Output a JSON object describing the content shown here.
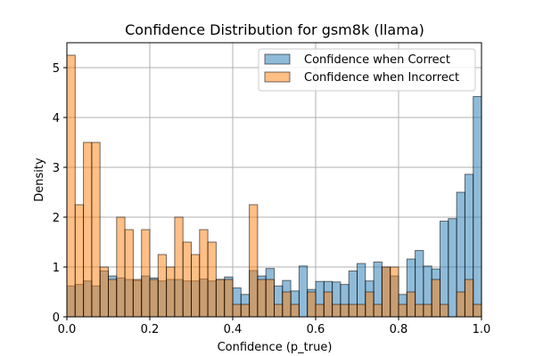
{
  "chart_data": {
    "type": "bar",
    "title": "Confidence Distribution for gsm8k (llama)",
    "xlabel": "Confidence (p_true)",
    "ylabel": "Density",
    "xlim": [
      0,
      1
    ],
    "ylim": [
      0,
      5.5
    ],
    "xticks": [
      0.0,
      0.2,
      0.4,
      0.6,
      0.8,
      1.0
    ],
    "xtick_labels": [
      "0.0",
      "0.2",
      "0.4",
      "0.6",
      "0.8",
      "1.0"
    ],
    "yticks": [
      0,
      1,
      2,
      3,
      4,
      5
    ],
    "ytick_labels": [
      "0",
      "1",
      "2",
      "3",
      "4",
      "5"
    ],
    "grid": true,
    "legend_position": "top-right",
    "bin_width": 0.02,
    "bin_start": 0.0,
    "series": [
      {
        "name": "Confidence when Correct",
        "color": "#1f77b4",
        "values": [
          0.62,
          0.65,
          0.72,
          0.62,
          0.92,
          0.82,
          0.78,
          0.75,
          0.73,
          0.82,
          0.78,
          0.72,
          0.75,
          0.75,
          0.72,
          0.72,
          0.76,
          0.72,
          0.75,
          0.8,
          0.58,
          0.45,
          0.93,
          0.82,
          0.97,
          0.62,
          0.73,
          0.52,
          1.02,
          0.55,
          0.71,
          0.71,
          0.7,
          0.65,
          0.92,
          1.07,
          0.72,
          1.1,
          1.0,
          0.82,
          0.45,
          1.16,
          1.33,
          1.02,
          0.96,
          1.92,
          1.97,
          2.5,
          2.86,
          4.42
        ]
      },
      {
        "name": "Confidence when Incorrect",
        "color": "#ff7f0e",
        "values": [
          5.25,
          2.25,
          3.5,
          3.5,
          1.0,
          0.75,
          2.0,
          1.75,
          0.75,
          1.75,
          0.75,
          1.25,
          1.0,
          2.0,
          1.5,
          1.25,
          1.75,
          1.5,
          0.75,
          0.75,
          0.25,
          0.25,
          2.25,
          0.75,
          0.75,
          0.25,
          0.5,
          0.25,
          0.0,
          0.5,
          0.25,
          0.5,
          0.25,
          0.25,
          0.25,
          0.25,
          0.5,
          0.25,
          1.0,
          1.0,
          0.25,
          0.5,
          0.25,
          0.25,
          0.75,
          0.25,
          0.0,
          0.5,
          0.75,
          0.25
        ]
      }
    ]
  }
}
